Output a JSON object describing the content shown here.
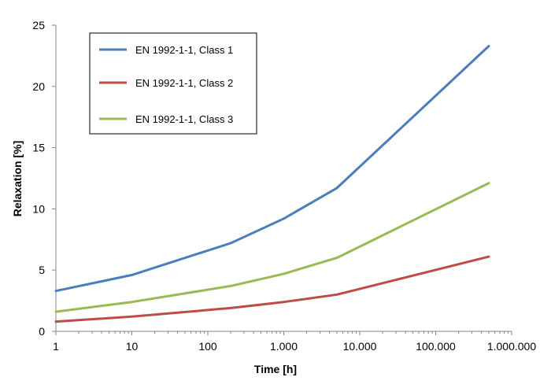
{
  "chart_data": {
    "type": "line",
    "title": "",
    "xlabel": "Time [h]",
    "ylabel": "Relaxation [%]",
    "xscale": "log",
    "xlim": [
      1,
      1000000
    ],
    "ylim": [
      0,
      25
    ],
    "grid": false,
    "legend_position": "top-left",
    "x_tick_labels": [
      {
        "value": 1,
        "label": "1"
      },
      {
        "value": 10,
        "label": "10"
      },
      {
        "value": 100,
        "label": "100"
      },
      {
        "value": 1000,
        "label": "1.000"
      },
      {
        "value": 10000,
        "label": "10.000"
      },
      {
        "value": 100000,
        "label": "100.000"
      },
      {
        "value": 1000000,
        "label": "1.000.000"
      }
    ],
    "y_tick_labels": [
      {
        "value": 0,
        "label": "0"
      },
      {
        "value": 5,
        "label": "5"
      },
      {
        "value": 10,
        "label": "10"
      },
      {
        "value": 15,
        "label": "15"
      },
      {
        "value": 20,
        "label": "20"
      },
      {
        "value": 25,
        "label": "25"
      }
    ],
    "series": [
      {
        "name": "EN 1992-1-1, Class 1",
        "color": "#4a7ebb",
        "x": [
          1,
          10,
          200,
          1000,
          5000,
          500000
        ],
        "y": [
          3.3,
          4.6,
          7.2,
          9.2,
          11.7,
          23.3
        ]
      },
      {
        "name": "EN 1992-1-1, Class 2",
        "color": "#be4b48",
        "x": [
          1,
          10,
          200,
          1000,
          5000,
          500000
        ],
        "y": [
          0.8,
          1.2,
          1.9,
          2.4,
          3.0,
          6.1
        ]
      },
      {
        "name": "EN 1992-1-1, Class 3",
        "color": "#98b954",
        "x": [
          1,
          10,
          200,
          1000,
          5000,
          500000
        ],
        "y": [
          1.6,
          2.4,
          3.7,
          4.7,
          6.0,
          12.1
        ]
      }
    ]
  }
}
